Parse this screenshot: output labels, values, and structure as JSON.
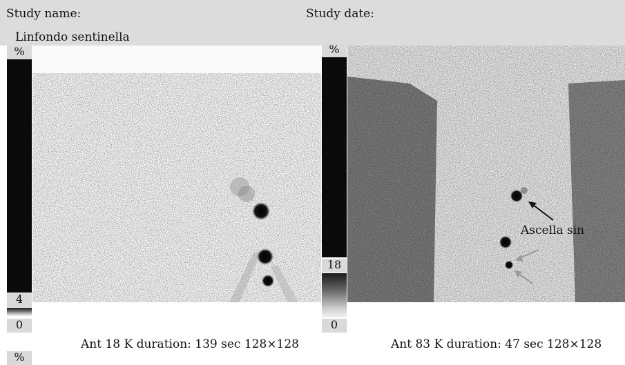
{
  "header": {
    "study_name_label": "Study name:",
    "study_name_value": "Linfondo sentinella",
    "study_date_label": "Study date:"
  },
  "left_scale": {
    "top_label": "%",
    "max_value": "4",
    "min_value": "0",
    "bottom_label": "%"
  },
  "right_scale": {
    "top_label": "%",
    "max_value": "18",
    "min_value": "0"
  },
  "left_panel": {
    "caption": "Ant 18 K duration: 139 sec 128×128"
  },
  "right_panel": {
    "caption": "Ant 83 K duration: 47 sec 128×128",
    "annotation": "Ascella sin"
  },
  "colors": {
    "header_bg": "#dcdcdc",
    "scale_bar": "#0a0a0a",
    "arrow_black": "#111111",
    "arrow_gray": "#9a9a9a"
  }
}
